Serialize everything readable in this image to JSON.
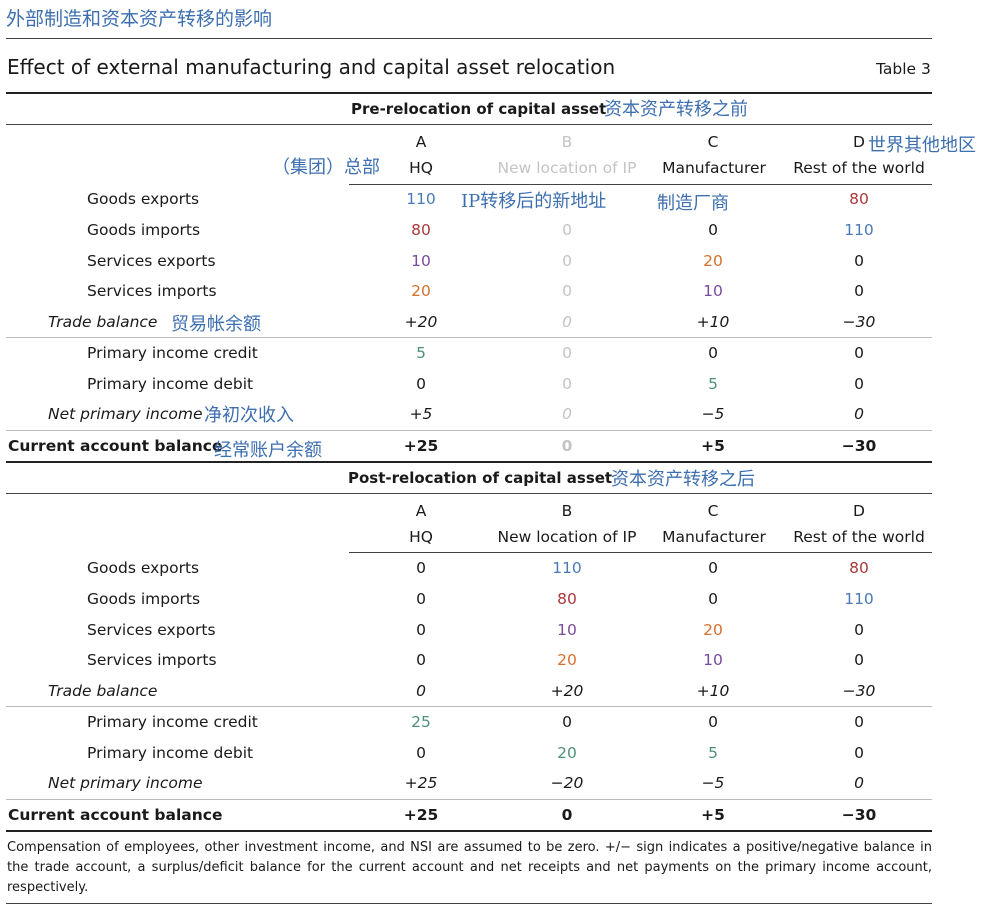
{
  "header": {
    "cn_title": "外部制造和资本资产转移的影响",
    "title": "Effect of external manufacturing and capital asset relocation",
    "table_no": "Table 3"
  },
  "pre": {
    "section_title": "Pre-relocation of capital asset",
    "section_cn": "资本资产转移之前",
    "col_letters": [
      "A",
      "B",
      "C",
      "D"
    ],
    "col_names": [
      "HQ",
      "New location of IP",
      "Manufacturer",
      "Rest of the world"
    ],
    "col_cn": {
      "hq": "（集团）总部",
      "d": "世界其他地区",
      "b": "IP转移后的新地址",
      "c": "制造厂商"
    },
    "rows": [
      {
        "label": "Goods exports",
        "values": [
          "110",
          "0",
          "",
          "80"
        ]
      },
      {
        "label": "Goods imports",
        "values": [
          "80",
          "0",
          "0",
          "110"
        ]
      },
      {
        "label": "Services exports",
        "values": [
          "10",
          "0",
          "20",
          "0"
        ]
      },
      {
        "label": "Services imports",
        "values": [
          "20",
          "0",
          "10",
          "0"
        ]
      },
      {
        "label": "Trade balance",
        "cn": "贸易帐余额",
        "values": [
          "+20",
          "0",
          "+10",
          "−30"
        ]
      },
      {
        "label": "Primary income credit",
        "values": [
          "5",
          "0",
          "0",
          "0"
        ]
      },
      {
        "label": "Primary income debit",
        "values": [
          "0",
          "0",
          "5",
          "0"
        ]
      },
      {
        "label": "Net primary income",
        "cn": "净初次收入",
        "values": [
          "+5",
          "0",
          "−5",
          "0"
        ]
      },
      {
        "label": "Current account balance",
        "cn": "经常账户余额",
        "values": [
          "+25",
          "0",
          "+5",
          "−30"
        ]
      }
    ]
  },
  "post": {
    "section_title": "Post-relocation of capital asset",
    "section_cn": "资本资产转移之后",
    "col_letters": [
      "A",
      "B",
      "C",
      "D"
    ],
    "col_names": [
      "HQ",
      "New location of IP",
      "Manufacturer",
      "Rest of the world"
    ],
    "rows": [
      {
        "label": "Goods exports",
        "values": [
          "0",
          "110",
          "0",
          "80"
        ]
      },
      {
        "label": "Goods imports",
        "values": [
          "0",
          "80",
          "0",
          "110"
        ]
      },
      {
        "label": "Services exports",
        "values": [
          "0",
          "10",
          "20",
          "0"
        ]
      },
      {
        "label": "Services imports",
        "values": [
          "0",
          "20",
          "10",
          "0"
        ]
      },
      {
        "label": "Trade balance",
        "values": [
          "0",
          "+20",
          "+10",
          "−30"
        ]
      },
      {
        "label": "Primary income credit",
        "values": [
          "25",
          "0",
          "0",
          "0"
        ]
      },
      {
        "label": "Primary income debit",
        "values": [
          "0",
          "20",
          "5",
          "0"
        ]
      },
      {
        "label": "Net primary income",
        "values": [
          "+25",
          "−20",
          "−5",
          "0"
        ]
      },
      {
        "label": "Current account balance",
        "values": [
          "+25",
          "0",
          "+5",
          "−30"
        ]
      }
    ]
  },
  "footnote": "Compensation of employees, other investment income, and NSI are assumed to be zero. +/− sign indicates a positive/negative balance in the trade account, a surplus/deficit balance for the current account and net receipts and net payments on the primary income account, respectively.",
  "colors": {
    "annotation": "#3d6fb0",
    "blue": "#4a79b8",
    "red": "#a8393b",
    "purple": "#7a4aa0",
    "orange": "#d4702c",
    "green": "#4f8f7c",
    "muted": "#c4c4c4"
  }
}
